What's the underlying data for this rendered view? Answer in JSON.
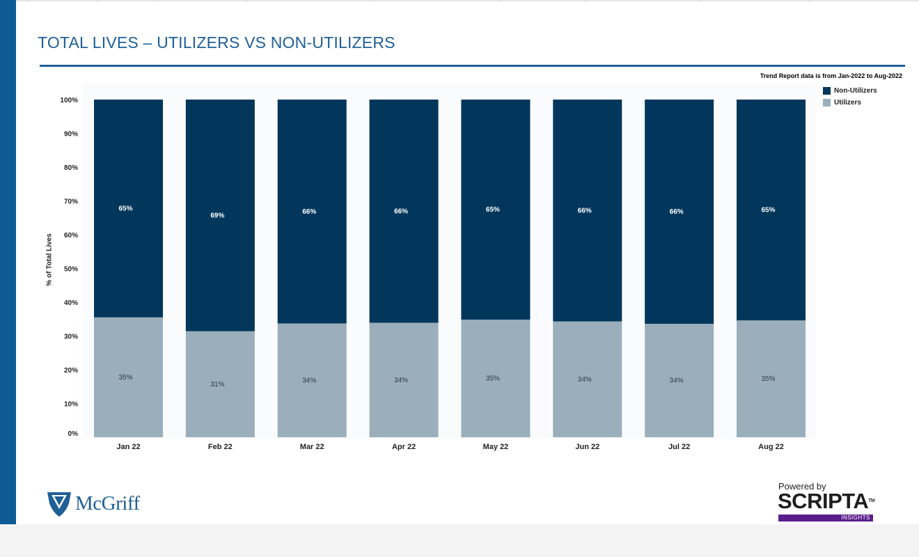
{
  "page": {
    "title": "TOTAL LIVES – UTILIZERS VS NON-UTILIZERS",
    "note": "Trend Report data is from Jan-2022 to Aug-2022"
  },
  "legend": [
    {
      "label": "Non-Utilizers",
      "color": "#02375b"
    },
    {
      "label": "Utilizers",
      "color": "#9aafbb"
    }
  ],
  "logos": {
    "mcgriff": "McGriff",
    "powered_by": "Powered by",
    "scripta": "SCRIPTA",
    "insights": "INSIGHTS"
  },
  "chart_data": {
    "type": "bar",
    "stacked": true,
    "title": "",
    "xlabel": "",
    "ylabel": "% of Total Lives",
    "ylim": [
      0,
      100
    ],
    "yticks": [
      0,
      10,
      20,
      30,
      40,
      50,
      60,
      70,
      80,
      90,
      100
    ],
    "ytick_labels": [
      "0%",
      "10%",
      "20%",
      "30%",
      "40%",
      "50%",
      "60%",
      "70%",
      "80%",
      "90%",
      "100%"
    ],
    "categories": [
      "Jan 22",
      "Feb 22",
      "Mar 22",
      "Apr 22",
      "May 22",
      "Jun 22",
      "Jul 22",
      "Aug 22"
    ],
    "series": [
      {
        "name": "Utilizers",
        "color": "#9aafbb",
        "values": [
          35.5,
          31.4,
          33.7,
          33.9,
          34.8,
          34.3,
          33.6,
          34.6
        ],
        "labels": [
          "35%",
          "31%",
          "34%",
          "34%",
          "35%",
          "34%",
          "34%",
          "35%"
        ]
      },
      {
        "name": "Non-Utilizers",
        "color": "#02375b",
        "values": [
          64.5,
          68.6,
          66.3,
          66.1,
          65.2,
          65.7,
          66.4,
          65.4
        ],
        "labels": [
          "65%",
          "69%",
          "66%",
          "66%",
          "65%",
          "66%",
          "66%",
          "65%"
        ]
      }
    ],
    "legend_position": "top-right",
    "grid": false
  }
}
